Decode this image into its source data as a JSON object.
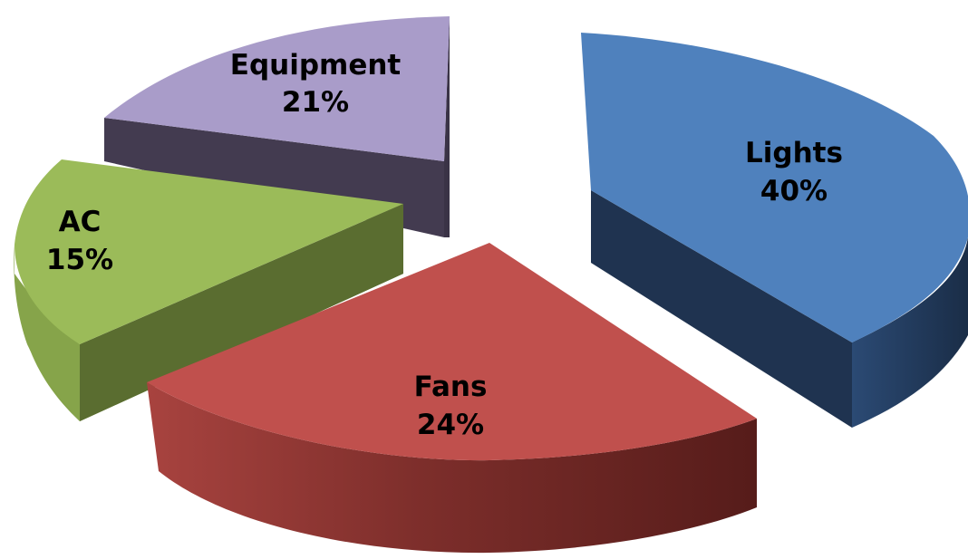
{
  "chart_data": {
    "type": "pie",
    "title": "",
    "three_d": true,
    "exploded": true,
    "label_format": "category and percent",
    "slices": [
      {
        "label": "Lights",
        "value": 40,
        "percent_label": "40%",
        "color": "#4f81bd",
        "side_color": "#1f3350"
      },
      {
        "label": "Fans",
        "value": 24,
        "percent_label": "24%",
        "color": "#c0504d",
        "side_color": "#6e2523"
      },
      {
        "label": "AC",
        "value": 15,
        "percent_label": "15%",
        "color": "#9bbb59",
        "side_color": "#56682f"
      },
      {
        "label": "Equipment",
        "value": 21,
        "percent_label": "21%",
        "color": "#a99cc9",
        "side_color": "#433b50"
      }
    ]
  }
}
